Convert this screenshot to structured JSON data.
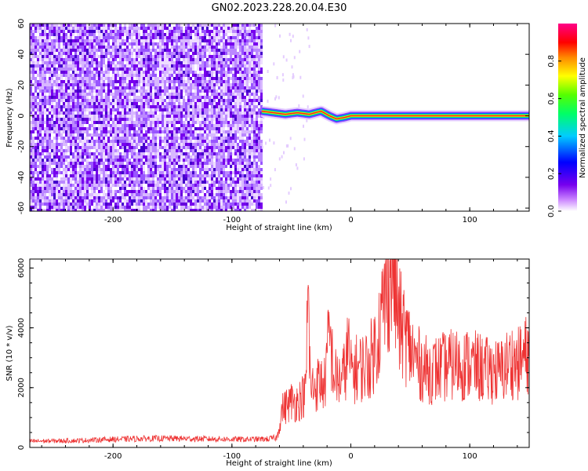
{
  "title": "GN02.2023.228.20.04.E30",
  "colors": {
    "snr_line": "#ee3333",
    "spectrogram_noise": "#7700ee",
    "ridge_peak": "#ff2222"
  },
  "chart_data": [
    {
      "type": "heatmap",
      "xlabel": "Height of straight line (km)",
      "ylabel": "Frequency (Hz)",
      "xlim": [
        -270,
        150
      ],
      "ylim": [
        -62,
        60
      ],
      "xticks": [
        -200,
        -100,
        0,
        100
      ],
      "xtick_labels": [
        "-200",
        "-100",
        "0",
        "100"
      ],
      "yticks": [
        60,
        40,
        20,
        0,
        -20,
        -40,
        -60
      ],
      "ytick_labels": [
        "60",
        "40",
        "20",
        "0",
        "-20",
        "-40",
        "-60"
      ],
      "noise_region_x": [
        -270,
        -75
      ],
      "ridge": {
        "x": [
          -75,
          -65,
          -55,
          -45,
          -35,
          -25,
          -18,
          -12,
          -5,
          0,
          50,
          100,
          150
        ],
        "freq": [
          3,
          2,
          1,
          2,
          1,
          3,
          0,
          -2,
          -1,
          0,
          0,
          0,
          0
        ]
      },
      "colorbar": {
        "label": "Normalized spectral amplitude",
        "range": [
          0.0,
          1.0
        ],
        "ticks": [
          0.0,
          0.2,
          0.4,
          0.6,
          0.8
        ],
        "tick_labels": [
          "0.0",
          "0.2",
          "0.4",
          "0.6",
          "0.8"
        ],
        "colormap": "rainbow"
      }
    },
    {
      "type": "line",
      "xlabel": "Height of straight line (km)",
      "ylabel": "SNR (10 * v/v)",
      "xlim": [
        -270,
        150
      ],
      "ylim": [
        0,
        6300
      ],
      "xticks": [
        -200,
        -100,
        0,
        100
      ],
      "xtick_labels": [
        "-200",
        "-100",
        "0",
        "100"
      ],
      "yticks": [
        0,
        2000,
        4000,
        6000
      ],
      "ytick_labels": [
        "0",
        "2000",
        "4000",
        "6000"
      ],
      "series": [
        {
          "x": [
            -270,
            -250,
            -230,
            -210,
            -190,
            -170,
            -150,
            -130,
            -110,
            -90,
            -70,
            -62,
            -58,
            -54,
            -50,
            -46,
            -42,
            -38,
            -36,
            -34,
            -30,
            -26,
            -22,
            -18,
            -14,
            -10,
            -6,
            -2,
            0,
            5,
            10,
            15,
            20,
            25,
            30,
            35,
            40,
            45,
            50,
            55,
            60,
            65,
            70,
            75,
            80,
            85,
            90,
            95,
            100,
            105,
            110,
            115,
            120,
            125,
            130,
            135,
            140,
            145,
            150
          ],
          "y": [
            210,
            220,
            230,
            260,
            280,
            300,
            300,
            290,
            280,
            270,
            280,
            330,
            1250,
            1400,
            1550,
            1500,
            1650,
            1800,
            5300,
            1950,
            2050,
            2200,
            2100,
            3800,
            2350,
            2250,
            2400,
            3400,
            2500,
            2650,
            2700,
            2800,
            3300,
            4200,
            5200,
            6200,
            4300,
            3800,
            3300,
            2900,
            2700,
            2550,
            2600,
            2650,
            2700,
            2750,
            2800,
            2750,
            2800,
            2700,
            2650,
            2550,
            2600,
            2500,
            2700,
            2900,
            2750,
            3000,
            3200
          ]
        }
      ]
    }
  ]
}
